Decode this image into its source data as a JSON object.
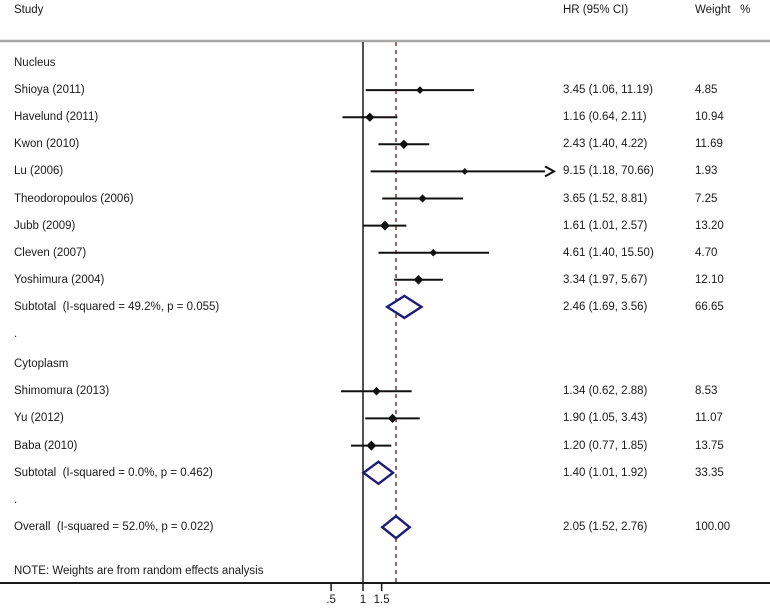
{
  "columns": {
    "study": "Study",
    "hr_ci": "HR (95% CI)",
    "weight_pct": "Weight   %"
  },
  "note": "NOTE: Weights are from random effects analysis",
  "axis": {
    "scale": "log",
    "ref_value": 1,
    "dashed_value": 2.05,
    "ticks": [
      {
        "label": ".5",
        "value": 0.5
      },
      {
        "label": "1",
        "value": 1
      },
      {
        "label": "1.5",
        "value": 1.5
      }
    ]
  },
  "colors": {
    "text": "#1a1a1a",
    "top_rule": "#a8a8a8",
    "bottom_rule": "#1a1a1a",
    "ref_line": "#1a1a1a",
    "dashed_line": "#8b3a42",
    "ci_line": "#111111",
    "study_marker": "#111111",
    "pooled_diamond": "#1b1b78",
    "pooled_fill": "#ffffff"
  },
  "chart_data": {
    "type": "scatter",
    "subtype": "forest-plot",
    "x_scale": "log",
    "xlabel": "",
    "ylabel": "",
    "x_ticks": [
      0.5,
      1,
      1.5
    ],
    "rows": [
      {
        "kind": "group",
        "label": "Nucleus"
      },
      {
        "kind": "study",
        "label": "Shioya (2011)",
        "hr": 3.45,
        "lo": 1.06,
        "hi": 11.19,
        "hr_text": "3.45 (1.06, 11.19)",
        "weight": "4.85"
      },
      {
        "kind": "study",
        "label": "Havelund (2011)",
        "hr": 1.16,
        "lo": 0.64,
        "hi": 2.11,
        "hr_text": "1.16 (0.64, 2.11)",
        "weight": "10.94"
      },
      {
        "kind": "study",
        "label": "Kwon (2010)",
        "hr": 2.43,
        "lo": 1.4,
        "hi": 4.22,
        "hr_text": "2.43 (1.40, 4.22)",
        "weight": "11.69"
      },
      {
        "kind": "study",
        "label": "Lu (2006)",
        "hr": 9.15,
        "lo": 1.18,
        "hi": 70.66,
        "hr_text": "9.15 (1.18, 70.66)",
        "weight": "1.93",
        "arrow": true
      },
      {
        "kind": "study",
        "label": "Theodoropoulos (2006)",
        "hr": 3.65,
        "lo": 1.52,
        "hi": 8.81,
        "hr_text": "3.65 (1.52, 8.81)",
        "weight": "7.25"
      },
      {
        "kind": "study",
        "label": "Jubb (2009)",
        "hr": 1.61,
        "lo": 1.01,
        "hi": 2.57,
        "hr_text": "1.61 (1.01, 2.57)",
        "weight": "13.20"
      },
      {
        "kind": "study",
        "label": "Cleven (2007)",
        "hr": 4.61,
        "lo": 1.4,
        "hi": 15.5,
        "hr_text": "4.61 (1.40, 15.50)",
        "weight": "4.70"
      },
      {
        "kind": "study",
        "label": "Yoshimura (2004)",
        "hr": 3.34,
        "lo": 1.97,
        "hi": 5.67,
        "hr_text": "3.34 (1.97, 5.67)",
        "weight": "12.10"
      },
      {
        "kind": "subtotal",
        "label": "Subtotal  (I-squared = 49.2%, p = 0.055)",
        "hr": 2.46,
        "lo": 1.69,
        "hi": 3.56,
        "hr_text": "2.46 (1.69, 3.56)",
        "weight": "66.65"
      },
      {
        "kind": "gap",
        "label": "."
      },
      {
        "kind": "group",
        "label": "Cytoplasm"
      },
      {
        "kind": "study",
        "label": "Shimomura (2013)",
        "hr": 1.34,
        "lo": 0.62,
        "hi": 2.88,
        "hr_text": "1.34 (0.62, 2.88)",
        "weight": "8.53"
      },
      {
        "kind": "study",
        "label": "Yu (2012)",
        "hr": 1.9,
        "lo": 1.05,
        "hi": 3.43,
        "hr_text": "1.90 (1.05, 3.43)",
        "weight": "11.07"
      },
      {
        "kind": "study",
        "label": "Baba (2010)",
        "hr": 1.2,
        "lo": 0.77,
        "hi": 1.85,
        "hr_text": "1.20 (0.77, 1.85)",
        "weight": "13.75"
      },
      {
        "kind": "subtotal",
        "label": "Subtotal  (I-squared = 0.0%, p = 0.462)",
        "hr": 1.4,
        "lo": 1.01,
        "hi": 1.92,
        "hr_text": "1.40 (1.01, 1.92)",
        "weight": "33.35"
      },
      {
        "kind": "gap",
        "label": "."
      },
      {
        "kind": "overall",
        "label": "Overall  (I-squared = 52.0%, p = 0.022)",
        "hr": 2.05,
        "lo": 1.52,
        "hi": 2.76,
        "hr_text": "2.05 (1.52, 2.76)",
        "weight": "100.00"
      }
    ]
  }
}
